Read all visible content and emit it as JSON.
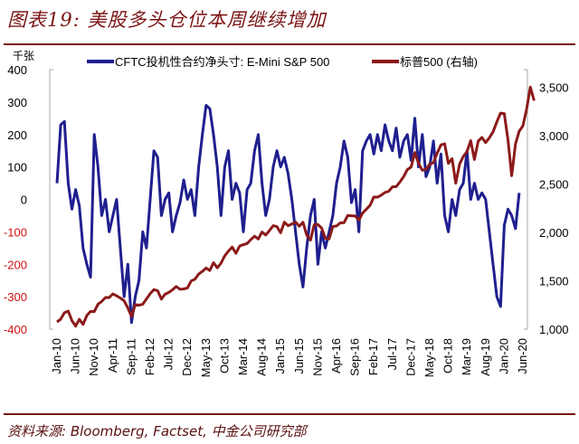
{
  "title": "图表19: 美股多头仓位本周继续增加",
  "source": "资料来源: Bloomberg, Factset, 中金公司研究部",
  "chart_data": {
    "type": "line",
    "left_unit": "千张",
    "legend_position": "top",
    "left_ylim": [
      -400,
      400
    ],
    "left_ticks": [
      400,
      300,
      200,
      100,
      0,
      -100,
      -200,
      -300,
      -400
    ],
    "right_ylim": [
      1000,
      3680
    ],
    "right_ticks": [
      {
        "v": 3500,
        "t": "3,500"
      },
      {
        "v": 3000,
        "t": "3,000"
      },
      {
        "v": 2500,
        "t": "2,500"
      },
      {
        "v": 2000,
        "t": "2,000"
      },
      {
        "v": 1500,
        "t": "1,500"
      },
      {
        "v": 1000,
        "t": "1,000"
      }
    ],
    "x_start": "Jan-10",
    "x_step_months": 1,
    "x_tick_labels": [
      "Jan-10",
      "Jun-10",
      "Nov-10",
      "Apr-11",
      "Sep-11",
      "Feb-12",
      "Jul-12",
      "Dec-12",
      "May-13",
      "Oct-13",
      "Mar-14",
      "Aug-14",
      "Jan-15",
      "Jun-15",
      "Nov-15",
      "Apr-16",
      "Sep-16",
      "Feb-17",
      "Jul-17",
      "Dec-17",
      "May-18",
      "Oct-18",
      "Mar-19",
      "Aug-19",
      "Jan-20",
      "Jun-20"
    ],
    "series": [
      {
        "name": "CFTC投机性合约净头寸: E-Mini S&P 500",
        "axis": "left",
        "color": "#1f1f8f",
        "values": [
          50,
          230,
          240,
          50,
          -30,
          30,
          -20,
          -150,
          -200,
          -240,
          200,
          100,
          -50,
          0,
          -100,
          -50,
          0,
          -150,
          -300,
          -200,
          -380,
          -300,
          -250,
          -100,
          -150,
          0,
          150,
          130,
          -50,
          0,
          20,
          -100,
          -50,
          -10,
          60,
          0,
          30,
          -50,
          100,
          200,
          290,
          280,
          200,
          100,
          -50,
          100,
          150,
          0,
          50,
          20,
          -100,
          30,
          50,
          150,
          200,
          50,
          -50,
          0,
          100,
          150,
          100,
          130,
          80,
          0,
          -100,
          -200,
          -270,
          -150,
          -50,
          0,
          -200,
          -100,
          -150,
          -100,
          -50,
          50,
          100,
          180,
          130,
          -10,
          30,
          -100,
          150,
          180,
          200,
          140,
          200,
          150,
          230,
          180,
          150,
          220,
          130,
          180,
          200,
          120,
          250,
          100,
          200,
          70,
          100,
          180,
          50,
          140,
          -50,
          -100,
          0,
          -50,
          30,
          50,
          150,
          0,
          50,
          0,
          20,
          0,
          -100,
          -200,
          -300,
          -330,
          -80,
          -30,
          -50,
          -90,
          20
        ]
      },
      {
        "name": "标普500 (右轴)",
        "axis": "right",
        "color": "#8b1a1a",
        "values": [
          1074,
          1104,
          1169,
          1187,
          1089,
          1031,
          1102,
          1049,
          1141,
          1183,
          1181,
          1258,
          1286,
          1327,
          1326,
          1364,
          1345,
          1321,
          1292,
          1219,
          1131,
          1253,
          1247,
          1258,
          1312,
          1366,
          1408,
          1398,
          1310,
          1362,
          1379,
          1407,
          1441,
          1412,
          1416,
          1426,
          1498,
          1515,
          1569,
          1597,
          1631,
          1606,
          1686,
          1633,
          1682,
          1757,
          1806,
          1848,
          1783,
          1859,
          1872,
          1884,
          1924,
          1960,
          1931,
          2003,
          1972,
          2018,
          2068,
          2059,
          1995,
          2105,
          2068,
          2086,
          2107,
          2063,
          2104,
          1972,
          1920,
          2079,
          2080,
          2044,
          1940,
          1932,
          2060,
          2065,
          2097,
          2099,
          2174,
          2171,
          2168,
          2126,
          2199,
          2239,
          2279,
          2364,
          2363,
          2384,
          2412,
          2423,
          2470,
          2472,
          2519,
          2575,
          2648,
          2674,
          2824,
          2714,
          2641,
          2648,
          2705,
          2718,
          2816,
          2902,
          2914,
          2712,
          2760,
          2507,
          2704,
          2784,
          2834,
          2946,
          2752,
          2942,
          2980,
          2926,
          2977,
          3038,
          3141,
          3231,
          3226,
          2954,
          2585,
          2912,
          3044,
          3100,
          3271,
          3500,
          3360
        ]
      }
    ]
  }
}
